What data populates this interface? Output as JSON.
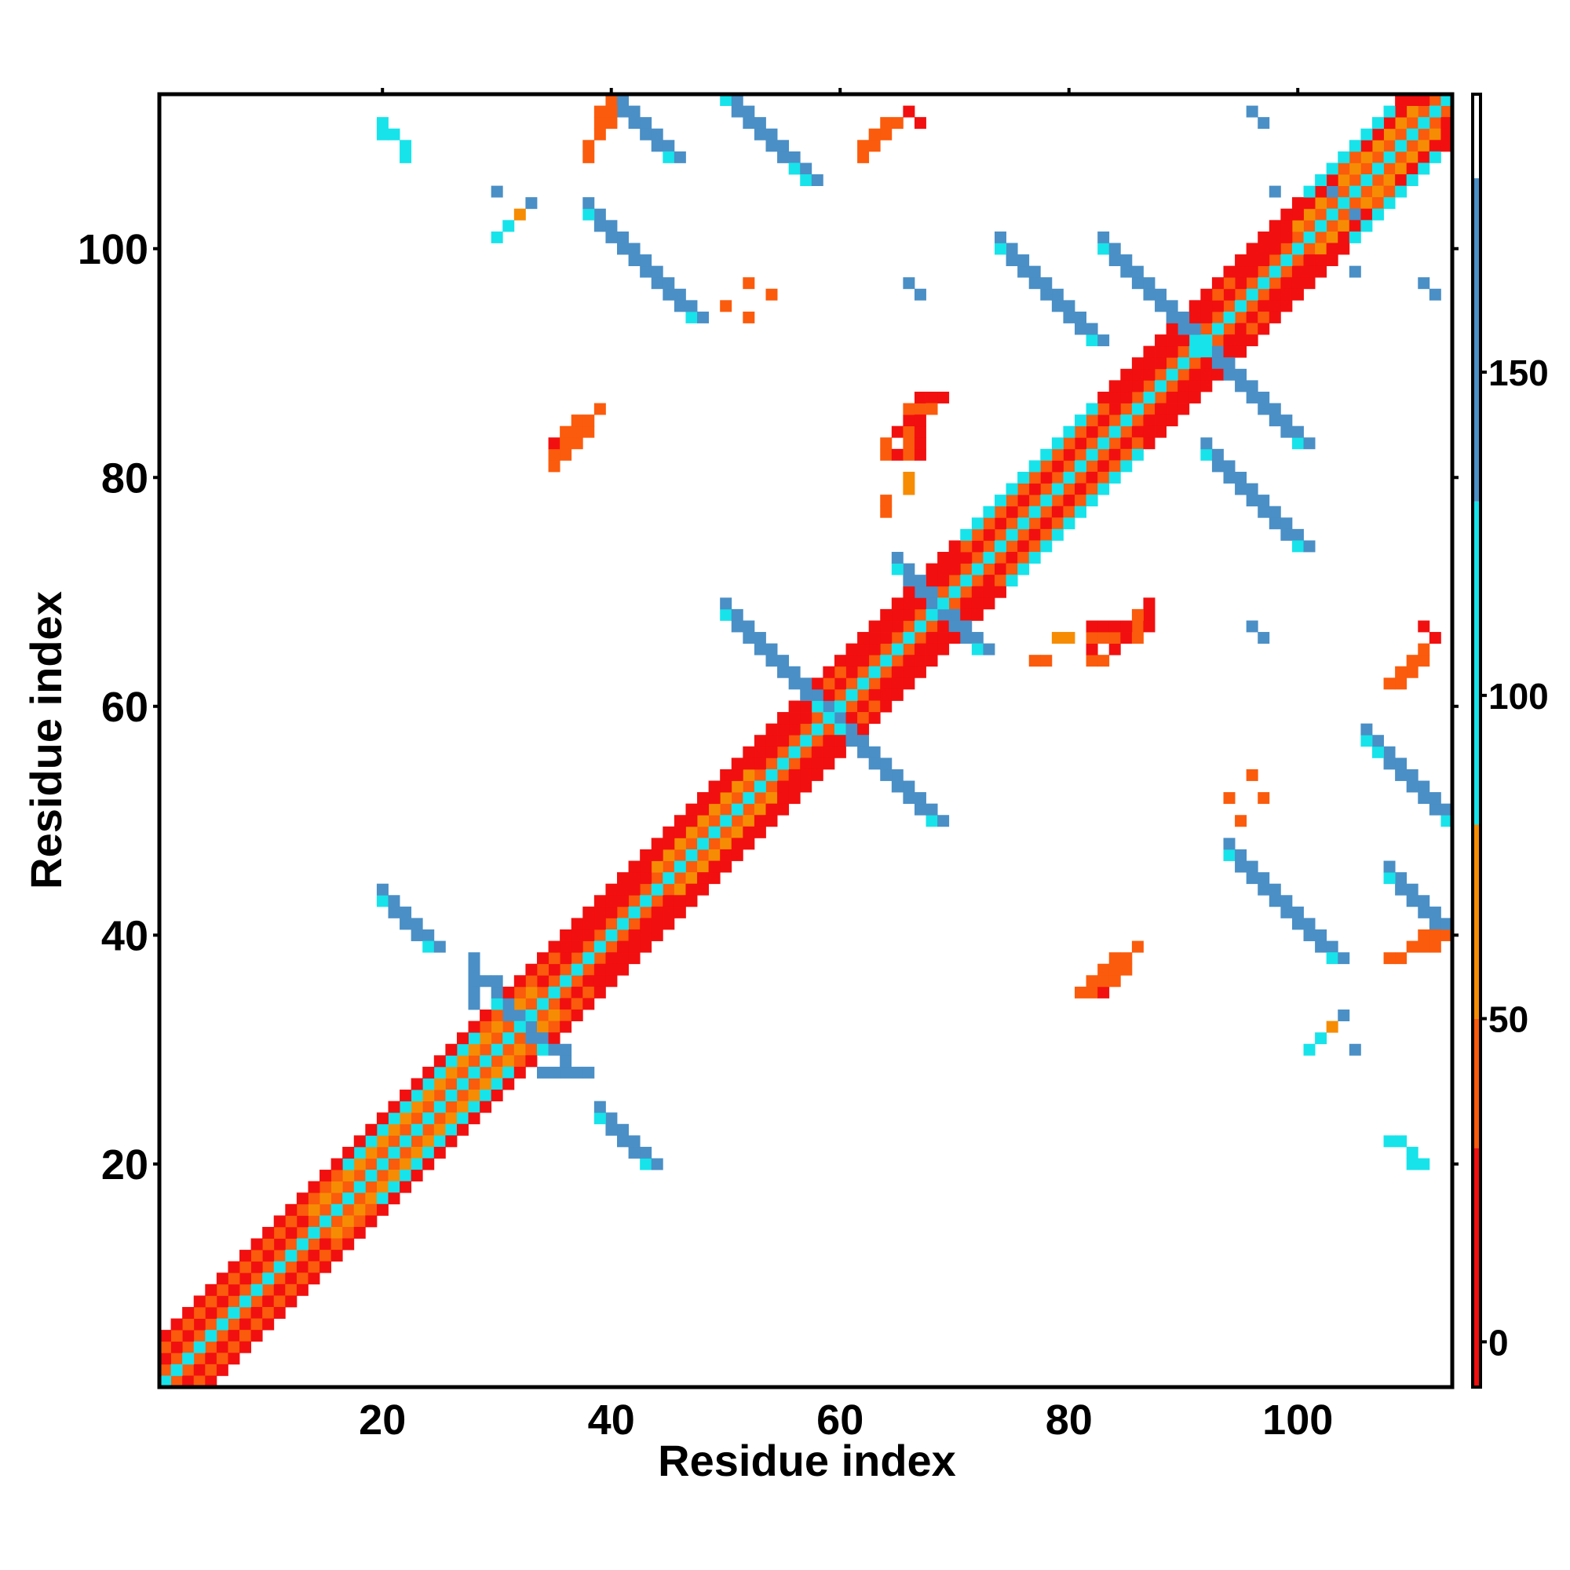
{
  "chart_data": {
    "type": "heatmap",
    "title": "",
    "xlabel": "Residue index",
    "ylabel": "Residue index",
    "xlim": [
      0.5,
      113.5
    ],
    "ylim": [
      0.5,
      113.5
    ],
    "x_ticks": [
      20,
      40,
      60,
      80,
      100
    ],
    "y_ticks": [
      20,
      40,
      60,
      80,
      100
    ],
    "x_tick_labels": [
      "20",
      "40",
      "60",
      "80",
      "100"
    ],
    "y_tick_labels": [
      "20",
      "40",
      "60",
      "80",
      "100"
    ],
    "grid": false,
    "colorbar": {
      "position": "right",
      "ticks": [
        0,
        50,
        100,
        150
      ],
      "tick_labels": [
        "0",
        "50",
        "100",
        "150"
      ],
      "range": [
        -7,
        193
      ],
      "bins": [
        {
          "from": -7,
          "to": 30,
          "color": "#f20f0f"
        },
        {
          "from": 30,
          "to": 50,
          "color": "#fb5b0c"
        },
        {
          "from": 50,
          "to": 80,
          "color": "#f68c04"
        },
        {
          "from": 80,
          "to": 130,
          "color": "#17e3ea"
        },
        {
          "from": 130,
          "to": 180,
          "color": "#4a8fc6"
        },
        {
          "from": 180,
          "to": 193,
          "color": "#ffffff"
        }
      ]
    },
    "value_classes": {
      "r": 10,
      "o": 40,
      "a": 65,
      "c": 100,
      "b": 150
    },
    "diagonal_bands": [
      {
        "from": 1,
        "to": 113,
        "offset": 0,
        "class": "c",
        "note": "self"
      }
    ],
    "cells": {
      "backbone": [
        {
          "i0": 1,
          "i1": 113,
          "d": 1,
          "class": "o"
        },
        {
          "i0": 1,
          "i1": 113,
          "d": 2,
          "class": "r"
        },
        {
          "i0": 1,
          "i1": 113,
          "d": 3,
          "class": "o"
        },
        {
          "i0": 1,
          "i1": 113,
          "d": 4,
          "class": "r"
        }
      ],
      "helix_bands": [
        {
          "i0": 36,
          "i1": 58,
          "d": 3,
          "class": "r"
        },
        {
          "i0": 36,
          "i1": 58,
          "d": 4,
          "class": "r"
        },
        {
          "i0": 61,
          "i1": 70,
          "d": 3,
          "class": "r"
        },
        {
          "i0": 84,
          "i1": 92,
          "d": 3,
          "class": "r"
        },
        {
          "i0": 95,
          "i1": 103,
          "d": 3,
          "class": "r"
        },
        {
          "i0": 106,
          "i1": 113,
          "d": 3,
          "class": "r"
        }
      ],
      "near_diag_cyan": [
        {
          "i0": 17,
          "i1": 28,
          "d": 3,
          "class": "c"
        },
        {
          "i0": 44,
          "i1": 50,
          "d": 4,
          "class": "c"
        },
        {
          "i0": 71,
          "i1": 82,
          "d": 4,
          "class": "c"
        },
        {
          "i0": 101,
          "i1": 108,
          "d": 4,
          "class": "c"
        }
      ],
      "near_diag_amber": [
        {
          "i0": 14,
          "i1": 33,
          "d": 2,
          "class": "a"
        },
        {
          "i0": 44,
          "i1": 52,
          "d": 2,
          "class": "a"
        },
        {
          "i0": 100,
          "i1": 110,
          "d": 2,
          "class": "a"
        }
      ],
      "antiparallel": [
        {
          "sum": 63,
          "a0": 20,
          "a1": 24,
          "class": "b",
          "edge": "c"
        },
        {
          "sum": 64,
          "a0": 30,
          "a1": 34,
          "class": "b",
          "edge": "c"
        },
        {
          "sum": 118,
          "a0": 50,
          "a1": 58,
          "class": "b",
          "edge": "c"
        },
        {
          "sum": 137,
          "a0": 66,
          "a1": 72,
          "class": "b",
          "edge": "c"
        },
        {
          "sum": 153,
          "a0": 32,
          "a1": 45,
          "class": "b",
          "edge": "c"
        },
        {
          "sum": 163,
          "a0": 49,
          "a1": 57,
          "class": "b",
          "edge": "c"
        },
        {
          "sum": 183,
          "a0": 83,
          "a1": 92,
          "class": "b",
          "edge": "c"
        },
        {
          "sum": 174,
          "a0": 92,
          "a1": 100,
          "class": "b",
          "edge": "c"
        },
        {
          "sum": 141,
          "a0": 94,
          "a1": 103,
          "class": "b",
          "edge": "c"
        },
        {
          "sum": 163,
          "a0": 107,
          "a1": 113,
          "class": "b",
          "edge": "c"
        }
      ],
      "points": [
        [
          40,
          113,
          "o"
        ],
        [
          40,
          112,
          "o"
        ],
        [
          39,
          112,
          "o"
        ],
        [
          38,
          109,
          "o"
        ],
        [
          63,
          110,
          "o"
        ],
        [
          64,
          110,
          "o"
        ],
        [
          64,
          111,
          "o"
        ],
        [
          65,
          111,
          "o"
        ],
        [
          62,
          109,
          "o"
        ],
        [
          63,
          109,
          "o"
        ],
        [
          66,
          112,
          "r"
        ],
        [
          50,
          95,
          "o"
        ],
        [
          52,
          97,
          "o"
        ],
        [
          66,
          97,
          "b"
        ],
        [
          111,
          97,
          "b"
        ],
        [
          105,
          103,
          "b"
        ],
        [
          96,
          112,
          "b"
        ],
        [
          98,
          105,
          "b"
        ],
        [
          35,
          81,
          "o"
        ],
        [
          35,
          82,
          "o"
        ],
        [
          36,
          82,
          "o"
        ],
        [
          37,
          83,
          "o"
        ],
        [
          37,
          84,
          "o"
        ],
        [
          38,
          84,
          "o"
        ],
        [
          38,
          85,
          "o"
        ],
        [
          39,
          86,
          "o"
        ],
        [
          64,
          82,
          "o"
        ],
        [
          64,
          83,
          "o"
        ],
        [
          65,
          82,
          "r"
        ],
        [
          65,
          84,
          "r"
        ],
        [
          66,
          84,
          "r"
        ],
        [
          66,
          85,
          "r"
        ],
        [
          66,
          86,
          "o"
        ],
        [
          67,
          86,
          "r"
        ],
        [
          68,
          87,
          "o"
        ],
        [
          67,
          87,
          "r"
        ],
        [
          64,
          77,
          "o"
        ],
        [
          64,
          78,
          "o"
        ],
        [
          79,
          66,
          "a"
        ],
        [
          80,
          66,
          "a"
        ],
        [
          82,
          66,
          "o"
        ],
        [
          83,
          66,
          "o"
        ],
        [
          84,
          66,
          "o"
        ],
        [
          82,
          67,
          "r"
        ],
        [
          83,
          67,
          "r"
        ],
        [
          84,
          67,
          "r"
        ],
        [
          85,
          67,
          "r"
        ],
        [
          86,
          67,
          "o"
        ],
        [
          86,
          68,
          "o"
        ],
        [
          87,
          68,
          "r"
        ],
        [
          87,
          69,
          "r"
        ],
        [
          96,
          67,
          "b"
        ],
        [
          111,
          67,
          "r"
        ],
        [
          108,
          62,
          "o"
        ],
        [
          109,
          62,
          "o"
        ],
        [
          109,
          63,
          "o"
        ],
        [
          110,
          63,
          "o"
        ],
        [
          110,
          64,
          "o"
        ],
        [
          96,
          54,
          "o"
        ],
        [
          94,
          52,
          "o"
        ],
        [
          82,
          35,
          "o"
        ],
        [
          83,
          35,
          "r"
        ],
        [
          83,
          36,
          "o"
        ],
        [
          84,
          36,
          "o"
        ],
        [
          84,
          37,
          "o"
        ],
        [
          85,
          37,
          "o"
        ],
        [
          85,
          38,
          "o"
        ],
        [
          86,
          39,
          "o"
        ],
        [
          110,
          39,
          "o"
        ],
        [
          111,
          39,
          "o"
        ],
        [
          111,
          40,
          "o"
        ],
        [
          108,
          38,
          "o"
        ],
        [
          104,
          33,
          "b"
        ],
        [
          105,
          30,
          "b"
        ],
        [
          101,
          30,
          "c"
        ],
        [
          102,
          31,
          "c"
        ],
        [
          103,
          32,
          "a"
        ],
        [
          108,
          22,
          "c"
        ],
        [
          109,
          22,
          "c"
        ],
        [
          110,
          21,
          "c"
        ],
        [
          111,
          20,
          "c"
        ],
        [
          110,
          20,
          "c"
        ],
        [
          28,
          38,
          "b"
        ],
        [
          28,
          36,
          "b"
        ],
        [
          29,
          36,
          "b"
        ],
        [
          30,
          36,
          "b"
        ],
        [
          34,
          28,
          "b"
        ],
        [
          35,
          28,
          "b"
        ],
        [
          36,
          28,
          "b"
        ],
        [
          37,
          28,
          "b"
        ]
      ]
    }
  }
}
